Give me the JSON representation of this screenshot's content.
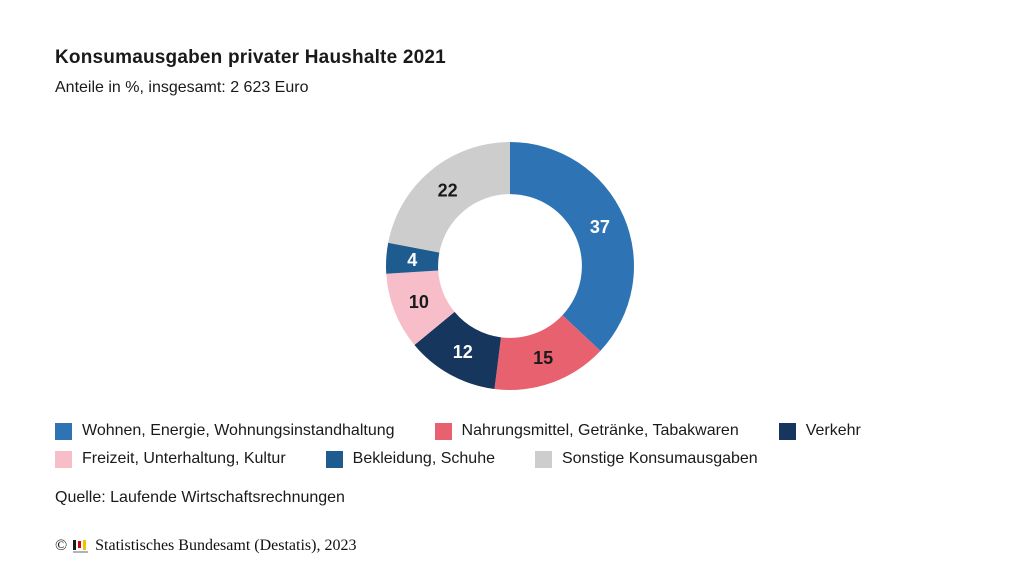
{
  "header": {
    "title": "Konsumausgaben privater Haushalte 2021",
    "subtitle": "Anteile in %, insgesamt: 2 623 Euro"
  },
  "chart_data": {
    "type": "pie",
    "variant": "donut",
    "title": "Konsumausgaben privater Haushalte 2021",
    "subtitle": "Anteile in %, insgesamt: 2 623 Euro",
    "unit": "%",
    "total": 100,
    "start_angle_deg": 0,
    "direction": "clockwise",
    "inner_radius_ratio": 0.58,
    "legend_position": "bottom",
    "legend_rows": [
      [
        0,
        1,
        2
      ],
      [
        3,
        4,
        5
      ]
    ],
    "segments": [
      {
        "label": "Wohnen, Energie, Wohnungsinstandhaltung",
        "value": 37,
        "color": "#2E74B5",
        "value_label_color": "#ffffff"
      },
      {
        "label": "Nahrungsmittel, Getränke, Tabakwaren",
        "value": 15,
        "color": "#E8616F",
        "value_label_color": "#1a1a1a"
      },
      {
        "label": "Verkehr",
        "value": 12,
        "color": "#17365D",
        "value_label_color": "#ffffff"
      },
      {
        "label": "Freizeit, Unterhaltung, Kultur",
        "value": 10,
        "color": "#F7BDC9",
        "value_label_color": "#1a1a1a"
      },
      {
        "label": "Bekleidung, Schuhe",
        "value": 4,
        "color": "#1E5C8F",
        "value_label_color": "#ffffff"
      },
      {
        "label": "Sonstige Konsumausgaben",
        "value": 22,
        "color": "#CDCDCD",
        "value_label_color": "#1a1a1a"
      }
    ]
  },
  "source": {
    "text": "Quelle: Laufende Wirtschaftsrechnungen"
  },
  "footer": {
    "copyright_symbol": "©",
    "text": "Statistisches Bundesamt (Destatis), 2023",
    "logo": {
      "name": "destatis-bar-chart-logo",
      "bar_colors": [
        "#1a1a1a",
        "#d0021b",
        "#f2c200"
      ],
      "base_color": "#b3b3b3"
    }
  }
}
